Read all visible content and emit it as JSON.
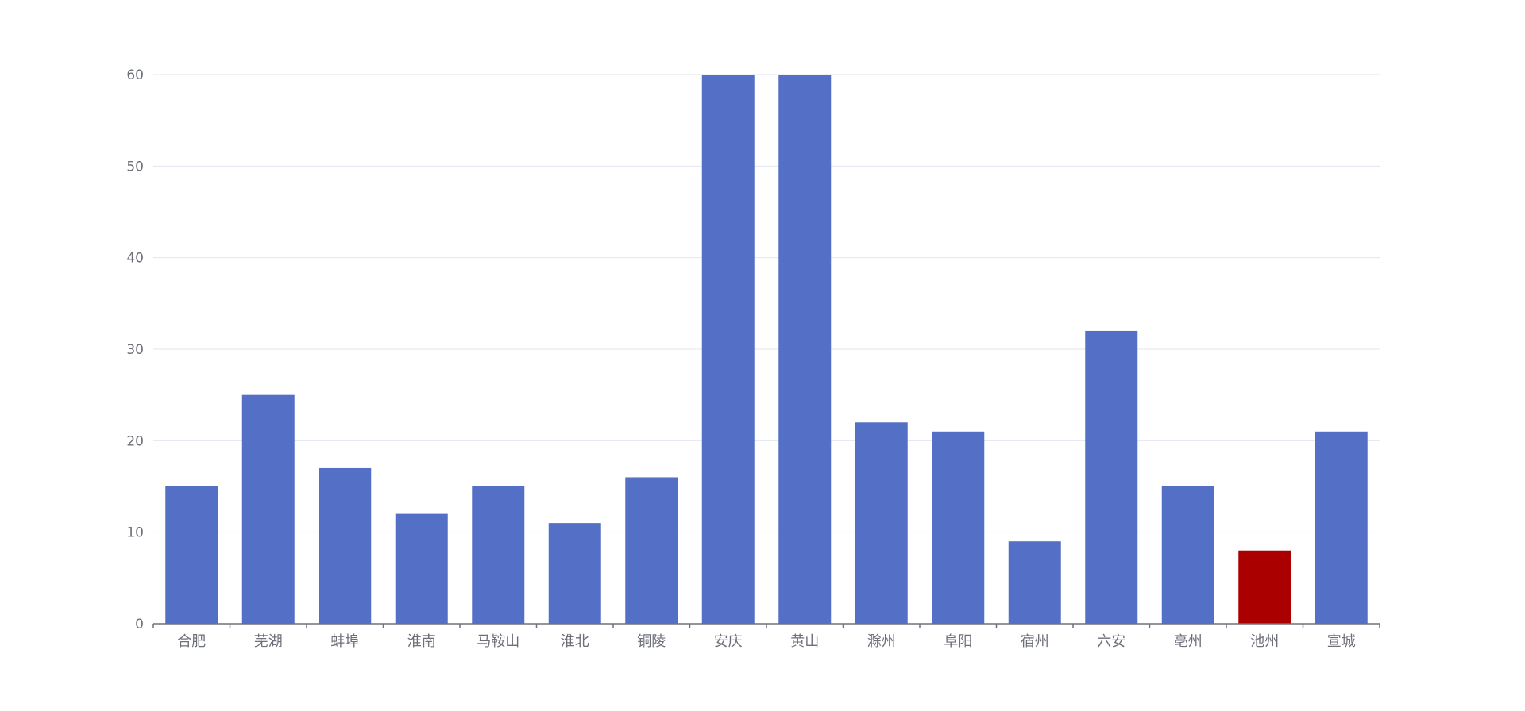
{
  "chart_data": {
    "type": "bar",
    "title": "",
    "xlabel": "",
    "ylabel": "",
    "categories": [
      "合肥",
      "芜湖",
      "蚌埠",
      "淮南",
      "马鞍山",
      "淮北",
      "铜陵",
      "安庆",
      "黄山",
      "滁州",
      "阜阳",
      "宿州",
      "六安",
      "亳州",
      "池州",
      "宣城"
    ],
    "series": [
      {
        "values": [
          15,
          25,
          17,
          12,
          15,
          11,
          16,
          60,
          60,
          22,
          21,
          9,
          32,
          15,
          8,
          21
        ]
      }
    ],
    "ylim": [
      0,
      60
    ],
    "yticks": [
      "0",
      "10",
      "20",
      "30",
      "40",
      "50",
      "60"
    ],
    "grid": true,
    "colors": {
      "bar": "#5470c6",
      "highlight": "#aa0000",
      "grid": "#e0e6f1",
      "axis": "#6e7079",
      "label": "#6e7079"
    },
    "highlight_category": "池州"
  }
}
